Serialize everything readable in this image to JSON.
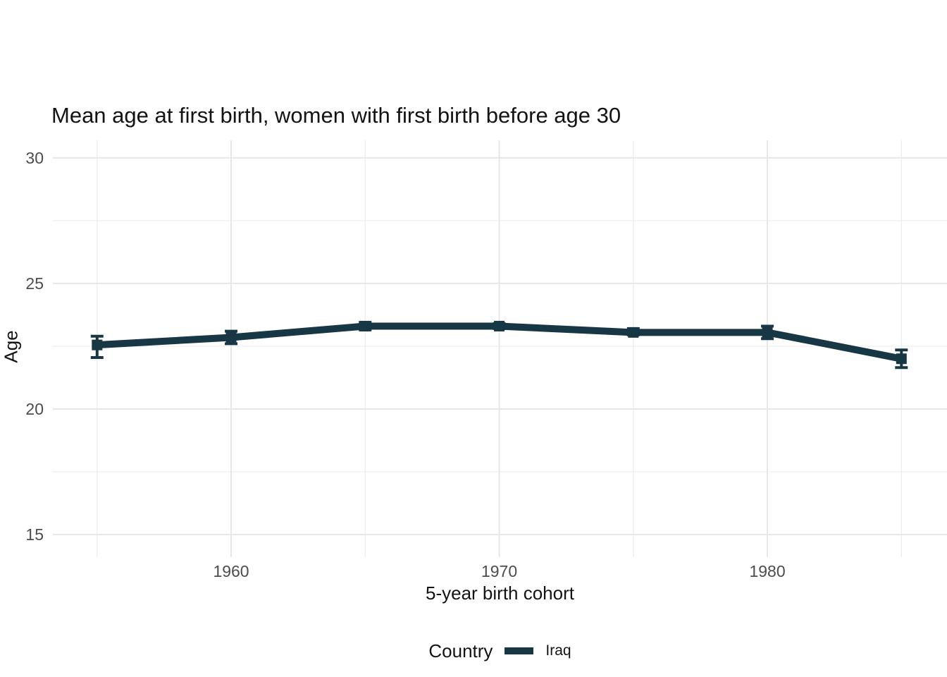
{
  "chart_data": {
    "type": "line",
    "title": "Mean age at first birth, women with first birth before age 30",
    "xlabel": "5-year birth cohort",
    "ylabel": "Age",
    "legend_title": "Country",
    "legend_position": "bottom",
    "grid": {
      "major_color": "#e7e7e7",
      "minor_color": "#ececec",
      "background": "#ffffff"
    },
    "x_domain": [
      1953.35,
      1986.7
    ],
    "y_domain": [
      14.1,
      30.7
    ],
    "x_ticks_major": [
      1960,
      1970,
      1980
    ],
    "x_ticks_minor": [
      1955,
      1965,
      1975,
      1985
    ],
    "y_ticks_major": [
      15,
      20,
      25,
      30
    ],
    "y_ticks_minor": [
      17.5,
      22.5,
      27.5
    ],
    "series": [
      {
        "name": "Iraq",
        "color": "#183744",
        "marker": "square",
        "error_bars": true,
        "x": [
          1955,
          1960,
          1965,
          1970,
          1975,
          1980,
          1985
        ],
        "y": [
          22.55,
          22.85,
          23.3,
          23.3,
          23.05,
          23.05,
          22.0
        ],
        "ci_lower": [
          22.05,
          22.6,
          23.15,
          23.2,
          22.95,
          22.8,
          21.65
        ],
        "ci_upper": [
          22.9,
          23.1,
          23.45,
          23.4,
          23.2,
          23.3,
          22.35
        ]
      }
    ]
  }
}
